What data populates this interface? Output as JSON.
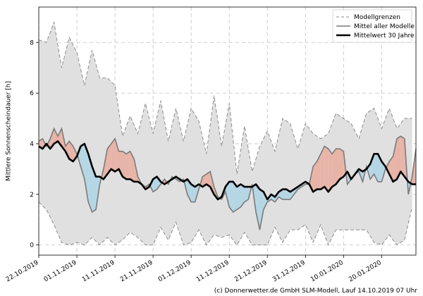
{
  "chart_data": {
    "type": "line",
    "ylabel": "Mittlere Sonnenscheindauer [h]",
    "xlabel": "",
    "ylim": [
      -0.4,
      9.4
    ],
    "xlim": [
      "2019-10-22",
      "2020-01-29"
    ],
    "grid": true,
    "legend_position": "top-right",
    "yticks": [
      0,
      2,
      4,
      6,
      8
    ],
    "xticks": [
      {
        "date": "2019-10-22",
        "label": "22.10.2019"
      },
      {
        "date": "2019-11-01",
        "label": "01.11.2019"
      },
      {
        "date": "2019-11-11",
        "label": "11.11.2019"
      },
      {
        "date": "2019-11-21",
        "label": "21.11.2019"
      },
      {
        "date": "2019-12-01",
        "label": "01.12.2019"
      },
      {
        "date": "2019-12-11",
        "label": "11.12.2019"
      },
      {
        "date": "2019-12-21",
        "label": "21.12.2019"
      },
      {
        "date": "2019-12-31",
        "label": "31.12.2019"
      },
      {
        "date": "2020-01-10",
        "label": "10.01.2020"
      },
      {
        "date": "2020-01-20",
        "label": "20.01.2020"
      }
    ],
    "series": [
      {
        "name": "Modellgrenzen",
        "role": "envelope",
        "x": [
          "2019-10-22",
          "2019-10-24",
          "2019-10-26",
          "2019-10-28",
          "2019-10-30",
          "2019-11-01",
          "2019-11-03",
          "2019-11-05",
          "2019-11-07",
          "2019-11-09",
          "2019-11-11",
          "2019-11-13",
          "2019-11-15",
          "2019-11-17",
          "2019-11-19",
          "2019-11-21",
          "2019-11-23",
          "2019-11-25",
          "2019-11-27",
          "2019-11-29",
          "2019-12-01",
          "2019-12-03",
          "2019-12-05",
          "2019-12-07",
          "2019-12-09",
          "2019-12-11",
          "2019-12-13",
          "2019-12-15",
          "2019-12-17",
          "2019-12-19",
          "2019-12-21",
          "2019-12-23",
          "2019-12-25",
          "2019-12-27",
          "2019-12-29",
          "2019-12-31",
          "2020-01-02",
          "2020-01-04",
          "2020-01-06",
          "2020-01-08",
          "2020-01-10",
          "2020-01-12",
          "2020-01-14",
          "2020-01-16",
          "2020-01-18",
          "2020-01-20",
          "2020-01-22",
          "2020-01-24",
          "2020-01-26",
          "2020-01-28"
        ],
        "upper": [
          8.1,
          8.0,
          8.8,
          7.0,
          8.2,
          7.6,
          6.3,
          7.7,
          6.6,
          6.6,
          6.3,
          4.3,
          5.1,
          4.4,
          5.6,
          4.4,
          5.7,
          4.1,
          5.4,
          4.1,
          5.4,
          4.9,
          3.6,
          5.9,
          3.9,
          5.6,
          2.8,
          4.7,
          2.9,
          3.9,
          4.5,
          3.7,
          5.0,
          4.8,
          3.8,
          4.8,
          4.4,
          4.2,
          4.4,
          5.2,
          5.0,
          4.8,
          4.2,
          5.2,
          5.4,
          4.6,
          5.4,
          4.6,
          5.0,
          5.0
        ],
        "lower": [
          1.7,
          1.4,
          0.8,
          0.1,
          0.0,
          0.1,
          0.0,
          0.3,
          0.0,
          0.3,
          0.0,
          0.2,
          0.5,
          0.3,
          0.0,
          0.0,
          0.7,
          0.2,
          0.9,
          0.0,
          0.1,
          0.6,
          0.0,
          0.4,
          0.3,
          0.4,
          0.0,
          0.5,
          0.0,
          0.0,
          0.0,
          0.7,
          0.1,
          0.6,
          0.6,
          0.8,
          0.1,
          0.8,
          0.0,
          0.6,
          0.6,
          0.6,
          0.6,
          0.6,
          0.1,
          0.0,
          0.4,
          0.0,
          0.2,
          1.5
        ]
      },
      {
        "name": "Mittel aller Modelle",
        "role": "mean",
        "x": [
          "2019-10-22",
          "2019-10-23",
          "2019-10-24",
          "2019-10-25",
          "2019-10-26",
          "2019-10-27",
          "2019-10-28",
          "2019-10-29",
          "2019-10-30",
          "2019-10-31",
          "2019-11-01",
          "2019-11-02",
          "2019-11-03",
          "2019-11-04",
          "2019-11-05",
          "2019-11-06",
          "2019-11-07",
          "2019-11-08",
          "2019-11-09",
          "2019-11-10",
          "2019-11-11",
          "2019-11-12",
          "2019-11-13",
          "2019-11-14",
          "2019-11-15",
          "2019-11-16",
          "2019-11-17",
          "2019-11-18",
          "2019-11-19",
          "2019-11-20",
          "2019-11-21",
          "2019-11-22",
          "2019-11-23",
          "2019-11-24",
          "2019-11-25",
          "2019-11-26",
          "2019-11-27",
          "2019-11-28",
          "2019-11-29",
          "2019-11-30",
          "2019-12-01",
          "2019-12-02",
          "2019-12-03",
          "2019-12-04",
          "2019-12-05",
          "2019-12-06",
          "2019-12-07",
          "2019-12-08",
          "2019-12-09",
          "2019-12-10",
          "2019-12-11",
          "2019-12-12",
          "2019-12-13",
          "2019-12-14",
          "2019-12-15",
          "2019-12-16",
          "2019-12-17",
          "2019-12-18",
          "2019-12-19",
          "2019-12-20",
          "2019-12-21",
          "2019-12-22",
          "2019-12-23",
          "2019-12-24",
          "2019-12-25",
          "2019-12-26",
          "2019-12-27",
          "2019-12-28",
          "2019-12-29",
          "2019-12-30",
          "2019-12-31",
          "2020-01-01",
          "2020-01-02",
          "2020-01-03",
          "2020-01-04",
          "2020-01-05",
          "2020-01-06",
          "2020-01-07",
          "2020-01-08",
          "2020-01-09",
          "2020-01-10",
          "2020-01-11",
          "2020-01-12",
          "2020-01-13",
          "2020-01-14",
          "2020-01-15",
          "2020-01-16",
          "2020-01-17",
          "2020-01-18",
          "2020-01-19",
          "2020-01-20",
          "2020-01-21",
          "2020-01-22",
          "2020-01-23",
          "2020-01-24",
          "2020-01-25",
          "2020-01-26",
          "2020-01-27",
          "2020-01-28",
          "2020-01-29"
        ],
        "values": [
          4.1,
          4.2,
          3.9,
          4.2,
          4.6,
          4.3,
          4.6,
          3.9,
          4.1,
          3.9,
          3.6,
          3.1,
          2.6,
          1.7,
          1.3,
          1.4,
          2.4,
          3.0,
          3.8,
          4.0,
          4.2,
          3.7,
          3.7,
          3.6,
          3.7,
          3.4,
          2.7,
          2.4,
          2.3,
          2.4,
          2.1,
          2.2,
          2.4,
          2.6,
          2.4,
          2.7,
          2.6,
          2.5,
          2.6,
          2.0,
          1.7,
          1.7,
          2.2,
          2.7,
          2.8,
          2.9,
          2.3,
          1.9,
          1.8,
          2.1,
          1.5,
          1.3,
          1.4,
          1.5,
          1.7,
          1.8,
          2.4,
          1.3,
          0.6,
          1.4,
          1.7,
          1.8,
          1.7,
          1.9,
          1.8,
          1.8,
          1.8,
          2.0,
          2.2,
          2.3,
          2.4,
          2.4,
          3.1,
          3.3,
          3.6,
          3.9,
          3.8,
          3.6,
          3.8,
          3.8,
          3.7,
          2.4,
          2.6,
          2.8,
          2.9,
          2.5,
          3.1,
          2.6,
          2.8,
          2.5,
          2.5,
          3.0,
          3.3,
          3.5,
          4.2,
          4.3,
          4.2,
          2.0,
          2.7,
          3.8
        ]
      },
      {
        "name": "Mittelwert 30 Jahre",
        "role": "climatology",
        "x": [
          "2019-10-22",
          "2019-10-23",
          "2019-10-24",
          "2019-10-25",
          "2019-10-26",
          "2019-10-27",
          "2019-10-28",
          "2019-10-29",
          "2019-10-30",
          "2019-10-31",
          "2019-11-01",
          "2019-11-02",
          "2019-11-03",
          "2019-11-04",
          "2019-11-05",
          "2019-11-06",
          "2019-11-07",
          "2019-11-08",
          "2019-11-09",
          "2019-11-10",
          "2019-11-11",
          "2019-11-12",
          "2019-11-13",
          "2019-11-14",
          "2019-11-15",
          "2019-11-16",
          "2019-11-17",
          "2019-11-18",
          "2019-11-19",
          "2019-11-20",
          "2019-11-21",
          "2019-11-22",
          "2019-11-23",
          "2019-11-24",
          "2019-11-25",
          "2019-11-26",
          "2019-11-27",
          "2019-11-28",
          "2019-11-29",
          "2019-11-30",
          "2019-12-01",
          "2019-12-02",
          "2019-12-03",
          "2019-12-04",
          "2019-12-05",
          "2019-12-06",
          "2019-12-07",
          "2019-12-08",
          "2019-12-09",
          "2019-12-10",
          "2019-12-11",
          "2019-12-12",
          "2019-12-13",
          "2019-12-14",
          "2019-12-15",
          "2019-12-16",
          "2019-12-17",
          "2019-12-18",
          "2019-12-19",
          "2019-12-20",
          "2019-12-21",
          "2019-12-22",
          "2019-12-23",
          "2019-12-24",
          "2019-12-25",
          "2019-12-26",
          "2019-12-27",
          "2019-12-28",
          "2019-12-29",
          "2019-12-30",
          "2019-12-31",
          "2020-01-01",
          "2020-01-02",
          "2020-01-03",
          "2020-01-04",
          "2020-01-05",
          "2020-01-06",
          "2020-01-07",
          "2020-01-08",
          "2020-01-09",
          "2020-01-10",
          "2020-01-11",
          "2020-01-12",
          "2020-01-13",
          "2020-01-14",
          "2020-01-15",
          "2020-01-16",
          "2020-01-17",
          "2020-01-18",
          "2020-01-19",
          "2020-01-20",
          "2020-01-21",
          "2020-01-22",
          "2020-01-23",
          "2020-01-24",
          "2020-01-25",
          "2020-01-26",
          "2020-01-27",
          "2020-01-28",
          "2020-01-29"
        ],
        "values": [
          3.9,
          3.8,
          4.0,
          3.8,
          4.0,
          4.1,
          3.9,
          3.7,
          3.4,
          3.3,
          3.5,
          3.9,
          4.0,
          3.6,
          3.1,
          2.7,
          2.7,
          2.6,
          2.8,
          3.0,
          2.9,
          3.0,
          2.7,
          2.6,
          2.6,
          2.5,
          2.5,
          2.4,
          2.2,
          2.3,
          2.6,
          2.7,
          2.5,
          2.4,
          2.5,
          2.6,
          2.7,
          2.6,
          2.5,
          2.6,
          2.4,
          2.3,
          2.4,
          2.3,
          2.4,
          2.3,
          2.0,
          1.8,
          1.9,
          2.3,
          2.5,
          2.5,
          2.3,
          2.4,
          2.3,
          2.3,
          2.3,
          2.4,
          2.2,
          2.1,
          1.8,
          2.0,
          1.9,
          2.1,
          2.2,
          2.2,
          2.1,
          2.2,
          2.3,
          2.4,
          2.5,
          2.4,
          2.1,
          2.2,
          2.2,
          2.3,
          2.1,
          2.3,
          2.4,
          2.6,
          2.7,
          2.9,
          2.6,
          2.8,
          3.0,
          2.9,
          3.0,
          3.2,
          3.6,
          3.6,
          3.3,
          3.1,
          2.8,
          2.5,
          2.6,
          2.9,
          2.7,
          2.5,
          2.4,
          2.4
        ]
      }
    ],
    "colors": {
      "envelope_fill": "#e0e0e0",
      "envelope_line": "#8c8c8c",
      "mean_line": "#7a7a7a",
      "climatology_line": "#000000",
      "above_fill": "#e8b4a8",
      "below_fill": "#b5d6e5",
      "grid": "#c0c0c0"
    }
  },
  "copyright": "(c) Donnerwetter.de GmbH SLM-Modell, Lauf 14.10.2019 07 Uhr"
}
